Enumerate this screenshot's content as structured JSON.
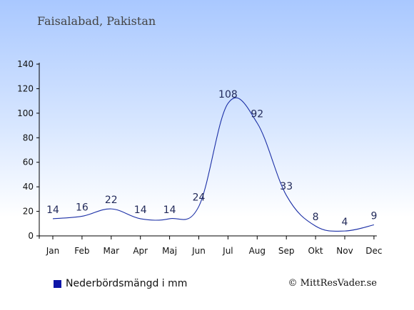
{
  "header": {
    "title": "Faisalabad, Pakistan"
  },
  "legend": {
    "label": "Nederbördsmängd i mm"
  },
  "footer": {
    "credit": "© MittResVader.se"
  },
  "colors": {
    "series": "#1b2fa6",
    "legend_swatch": "#0e16a8",
    "axis": "#000000"
  },
  "chart_data": {
    "type": "line",
    "title": "Faisalabad, Pakistan",
    "xlabel": "",
    "ylabel": "",
    "categories": [
      "Jan",
      "Feb",
      "Mar",
      "Apr",
      "Maj",
      "Jun",
      "Jul",
      "Aug",
      "Sep",
      "Okt",
      "Nov",
      "Dec"
    ],
    "series": [
      {
        "name": "Nederbördsmängd i mm",
        "values": [
          14,
          16,
          22,
          14,
          14,
          24,
          108,
          92,
          33,
          8,
          4,
          9
        ]
      }
    ],
    "ylim": [
      0,
      140
    ],
    "yticks": [
      0,
      20,
      40,
      60,
      80,
      100,
      120,
      140
    ],
    "grid": false,
    "legend_position": "bottom-left",
    "data_labels": true
  }
}
